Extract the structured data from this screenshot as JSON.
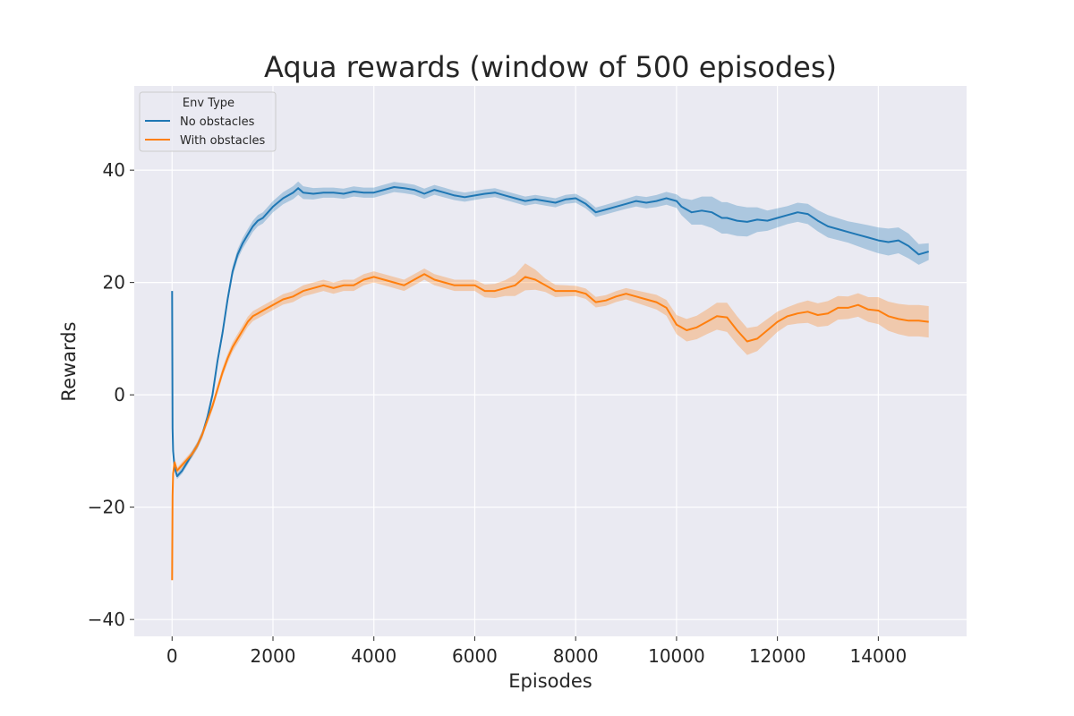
{
  "chart_data": {
    "type": "line",
    "title": "Aqua rewards (window of 500 episodes)",
    "xlabel": "Episodes",
    "ylabel": "Rewards",
    "xlim": [
      -750,
      15750
    ],
    "ylim": [
      -43,
      55
    ],
    "xticks": [
      0,
      2000,
      4000,
      6000,
      8000,
      10000,
      12000,
      14000
    ],
    "xtick_labels": [
      "0",
      "2000",
      "4000",
      "6000",
      "8000",
      "10000",
      "12000",
      "14000"
    ],
    "yticks": [
      -40,
      -20,
      0,
      20,
      40
    ],
    "ytick_labels": [
      "−40",
      "−20",
      "0",
      "20",
      "40"
    ],
    "grid": true,
    "legend": {
      "title": "Env Type",
      "placement": "top-left"
    },
    "series": [
      {
        "name": "No obstacles",
        "color": "#1f77b4",
        "band_color": "#1f77b4",
        "points": [
          [
            0,
            18.5
          ],
          [
            10,
            -6
          ],
          [
            20,
            -10
          ],
          [
            50,
            -13
          ],
          [
            100,
            -14.5
          ],
          [
            150,
            -14
          ],
          [
            200,
            -13.5
          ],
          [
            300,
            -12
          ],
          [
            400,
            -10.5
          ],
          [
            500,
            -9
          ],
          [
            600,
            -7
          ],
          [
            700,
            -4
          ],
          [
            800,
            0
          ],
          [
            900,
            6
          ],
          [
            1000,
            11
          ],
          [
            1100,
            17
          ],
          [
            1200,
            22
          ],
          [
            1300,
            25
          ],
          [
            1400,
            27
          ],
          [
            1500,
            28.5
          ],
          [
            1600,
            30
          ],
          [
            1700,
            31
          ],
          [
            1800,
            31.5
          ],
          [
            1900,
            32.5
          ],
          [
            2000,
            33.5
          ],
          [
            2200,
            35
          ],
          [
            2400,
            36
          ],
          [
            2500,
            36.8
          ],
          [
            2600,
            36
          ],
          [
            2800,
            35.8
          ],
          [
            3000,
            36
          ],
          [
            3200,
            36
          ],
          [
            3400,
            35.8
          ],
          [
            3600,
            36.2
          ],
          [
            3800,
            36
          ],
          [
            4000,
            36
          ],
          [
            4200,
            36.5
          ],
          [
            4400,
            37
          ],
          [
            4600,
            36.8
          ],
          [
            4800,
            36.5
          ],
          [
            5000,
            35.8
          ],
          [
            5200,
            36.5
          ],
          [
            5400,
            36
          ],
          [
            5600,
            35.5
          ],
          [
            5800,
            35.2
          ],
          [
            6000,
            35.5
          ],
          [
            6200,
            35.8
          ],
          [
            6400,
            36
          ],
          [
            6600,
            35.5
          ],
          [
            6800,
            35
          ],
          [
            7000,
            34.5
          ],
          [
            7200,
            34.8
          ],
          [
            7400,
            34.5
          ],
          [
            7600,
            34.2
          ],
          [
            7800,
            34.8
          ],
          [
            8000,
            35
          ],
          [
            8200,
            34
          ],
          [
            8400,
            32.5
          ],
          [
            8600,
            33
          ],
          [
            8800,
            33.5
          ],
          [
            9000,
            34
          ],
          [
            9200,
            34.5
          ],
          [
            9400,
            34.2
          ],
          [
            9600,
            34.5
          ],
          [
            9800,
            35
          ],
          [
            10000,
            34.5
          ],
          [
            10100,
            33.5
          ],
          [
            10300,
            32.5
          ],
          [
            10500,
            32.8
          ],
          [
            10700,
            32.5
          ],
          [
            10900,
            31.5
          ],
          [
            11000,
            31.5
          ],
          [
            11200,
            31
          ],
          [
            11400,
            30.8
          ],
          [
            11600,
            31.2
          ],
          [
            11800,
            31
          ],
          [
            12000,
            31.5
          ],
          [
            12200,
            32
          ],
          [
            12400,
            32.5
          ],
          [
            12600,
            32.2
          ],
          [
            12800,
            31
          ],
          [
            13000,
            30
          ],
          [
            13200,
            29.5
          ],
          [
            13400,
            29
          ],
          [
            13600,
            28.5
          ],
          [
            13800,
            28
          ],
          [
            14000,
            27.5
          ],
          [
            14200,
            27.2
          ],
          [
            14400,
            27.5
          ],
          [
            14600,
            26.5
          ],
          [
            14800,
            25
          ],
          [
            15000,
            25.5
          ]
        ],
        "band": [
          [
            0,
            0.5
          ],
          [
            500,
            0.6
          ],
          [
            1000,
            0.8
          ],
          [
            1500,
            1.0
          ],
          [
            2000,
            1.0
          ],
          [
            2500,
            1.2
          ],
          [
            3000,
            0.9
          ],
          [
            4000,
            0.9
          ],
          [
            5000,
            0.9
          ],
          [
            6000,
            0.8
          ],
          [
            7000,
            0.8
          ],
          [
            8000,
            0.8
          ],
          [
            9000,
            0.9
          ],
          [
            10000,
            1.2
          ],
          [
            10300,
            2.2
          ],
          [
            10700,
            2.8
          ],
          [
            11000,
            2.8
          ],
          [
            11400,
            2.6
          ],
          [
            11800,
            1.8
          ],
          [
            12200,
            1.6
          ],
          [
            12600,
            1.8
          ],
          [
            13000,
            2.0
          ],
          [
            13400,
            1.9
          ],
          [
            13800,
            2.2
          ],
          [
            14200,
            2.4
          ],
          [
            14600,
            2.2
          ],
          [
            15000,
            1.5
          ]
        ]
      },
      {
        "name": "With obstacles",
        "color": "#ff7f0e",
        "band_color": "#ff7f0e",
        "points": [
          [
            0,
            -33
          ],
          [
            10,
            -18
          ],
          [
            20,
            -14
          ],
          [
            50,
            -12
          ],
          [
            100,
            -13.5
          ],
          [
            150,
            -13
          ],
          [
            200,
            -12.5
          ],
          [
            300,
            -11.5
          ],
          [
            400,
            -10.5
          ],
          [
            500,
            -9
          ],
          [
            600,
            -7
          ],
          [
            700,
            -4.5
          ],
          [
            800,
            -2
          ],
          [
            900,
            1
          ],
          [
            1000,
            4
          ],
          [
            1100,
            6.5
          ],
          [
            1200,
            8.5
          ],
          [
            1300,
            10
          ],
          [
            1400,
            11.5
          ],
          [
            1500,
            13
          ],
          [
            1600,
            14
          ],
          [
            1700,
            14.5
          ],
          [
            1800,
            15
          ],
          [
            1900,
            15.5
          ],
          [
            2000,
            16
          ],
          [
            2200,
            17
          ],
          [
            2400,
            17.5
          ],
          [
            2600,
            18.5
          ],
          [
            2800,
            19
          ],
          [
            3000,
            19.5
          ],
          [
            3200,
            19
          ],
          [
            3400,
            19.5
          ],
          [
            3600,
            19.5
          ],
          [
            3800,
            20.5
          ],
          [
            4000,
            21
          ],
          [
            4200,
            20.5
          ],
          [
            4400,
            20
          ],
          [
            4600,
            19.5
          ],
          [
            4800,
            20.5
          ],
          [
            5000,
            21.5
          ],
          [
            5200,
            20.5
          ],
          [
            5400,
            20
          ],
          [
            5600,
            19.5
          ],
          [
            5800,
            19.5
          ],
          [
            6000,
            19.5
          ],
          [
            6200,
            18.5
          ],
          [
            6400,
            18.5
          ],
          [
            6600,
            19
          ],
          [
            6800,
            19.5
          ],
          [
            7000,
            21
          ],
          [
            7200,
            20.5
          ],
          [
            7400,
            19.5
          ],
          [
            7600,
            18.5
          ],
          [
            7800,
            18.5
          ],
          [
            8000,
            18.5
          ],
          [
            8200,
            18
          ],
          [
            8400,
            16.5
          ],
          [
            8600,
            16.8
          ],
          [
            8800,
            17.5
          ],
          [
            9000,
            18
          ],
          [
            9200,
            17.5
          ],
          [
            9400,
            17
          ],
          [
            9600,
            16.5
          ],
          [
            9800,
            15.5
          ],
          [
            10000,
            12.5
          ],
          [
            10200,
            11.5
          ],
          [
            10400,
            12
          ],
          [
            10600,
            13
          ],
          [
            10800,
            14
          ],
          [
            11000,
            13.8
          ],
          [
            11200,
            11.5
          ],
          [
            11400,
            9.5
          ],
          [
            11600,
            10
          ],
          [
            11800,
            11.5
          ],
          [
            12000,
            13
          ],
          [
            12200,
            14
          ],
          [
            12400,
            14.5
          ],
          [
            12600,
            14.8
          ],
          [
            12800,
            14.2
          ],
          [
            13000,
            14.5
          ],
          [
            13200,
            15.5
          ],
          [
            13400,
            15.5
          ],
          [
            13600,
            16
          ],
          [
            13800,
            15.2
          ],
          [
            14000,
            15
          ],
          [
            14200,
            14
          ],
          [
            14400,
            13.5
          ],
          [
            14600,
            13.2
          ],
          [
            14800,
            13.2
          ],
          [
            15000,
            13
          ]
        ],
        "band": [
          [
            0,
            0.5
          ],
          [
            500,
            0.6
          ],
          [
            1000,
            0.8
          ],
          [
            1500,
            0.9
          ],
          [
            2000,
            0.9
          ],
          [
            2500,
            1.0
          ],
          [
            3000,
            1.0
          ],
          [
            4000,
            1.0
          ],
          [
            5000,
            1.0
          ],
          [
            6000,
            1.0
          ],
          [
            6600,
            1.4
          ],
          [
            7000,
            2.4
          ],
          [
            7400,
            1.2
          ],
          [
            8000,
            0.9
          ],
          [
            9000,
            1.0
          ],
          [
            9800,
            1.4
          ],
          [
            10200,
            2.0
          ],
          [
            10600,
            2.2
          ],
          [
            11000,
            2.6
          ],
          [
            11400,
            2.4
          ],
          [
            11800,
            2.0
          ],
          [
            12200,
            1.6
          ],
          [
            12600,
            2.0
          ],
          [
            13000,
            2.2
          ],
          [
            13400,
            2.0
          ],
          [
            13800,
            2.2
          ],
          [
            14200,
            2.6
          ],
          [
            14600,
            2.8
          ],
          [
            15000,
            2.8
          ]
        ]
      }
    ]
  }
}
